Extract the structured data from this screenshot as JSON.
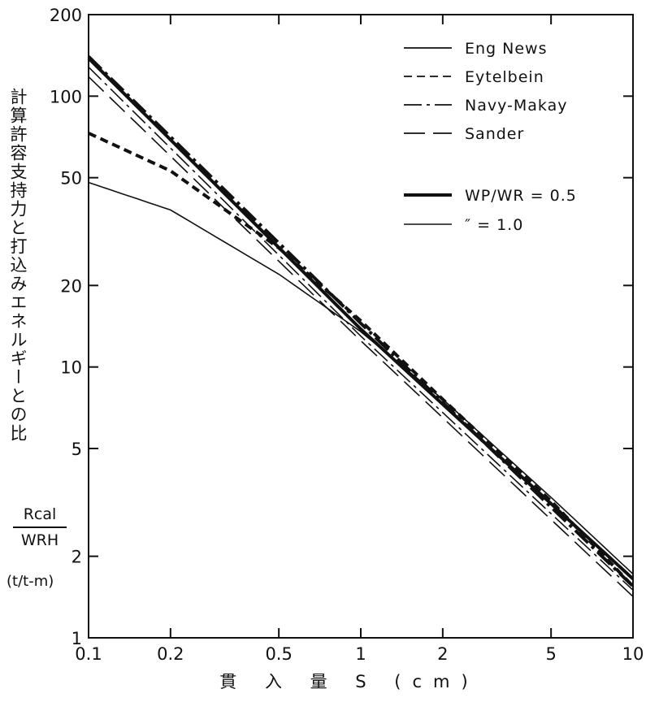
{
  "chart_data": {
    "type": "line",
    "title": "",
    "xlabel": "貫 入 量 S (cm)",
    "ylabel": {
      "text": "計算許容支持力と打込みエネルギーとの比",
      "numerator": "Rcal",
      "denominator": "WRH",
      "unit": "(t/t-m)"
    },
    "xscale": "log",
    "yscale": "log",
    "xlim": [
      0.1,
      10
    ],
    "ylim": [
      1,
      200
    ],
    "xticks": [
      "0.1",
      "0.2",
      "0.5",
      "1",
      "2",
      "5",
      "10"
    ],
    "yticks": [
      "1",
      "2",
      "5",
      "10",
      "20",
      "50",
      "100",
      "200"
    ],
    "grid": false,
    "legend": {
      "placement": "top-right",
      "styles": [
        {
          "label": "Eng News",
          "dash": "solid"
        },
        {
          "label": "Eytelbein",
          "dash": "dashed"
        },
        {
          "label": "Navy-Makay",
          "dash": "dashdot"
        },
        {
          "label": "Sander",
          "dash": "longdash"
        }
      ],
      "weights": [
        {
          "label": "WP/WR = 0.5",
          "width": "thick"
        },
        {
          "label": "″ = 1.0",
          "width": "thin"
        }
      ]
    },
    "series": [
      {
        "formula": "Eng News",
        "ratio": 0.5,
        "dash": "solid",
        "width": "thick",
        "x": [
          0.1,
          1,
          10
        ],
        "y": [
          138,
          13.8,
          1.65
        ]
      },
      {
        "formula": "Eytelbein",
        "ratio": 0.5,
        "dash": "dashed",
        "width": "thick",
        "x": [
          0.1,
          0.2,
          0.5,
          1,
          2,
          5,
          10
        ],
        "y": [
          73,
          53,
          27.5,
          14.8,
          7.6,
          3.2,
          1.55
        ]
      },
      {
        "formula": "Navy-Makay",
        "ratio": 0.5,
        "dash": "dashdot",
        "width": "thick",
        "x": [
          0.1,
          1,
          10
        ],
        "y": [
          140,
          14.5,
          1.55
        ]
      },
      {
        "formula": "Eng News",
        "ratio": 1.0,
        "dash": "solid",
        "width": "thin",
        "x": [
          0.1,
          0.2,
          0.5,
          1,
          2,
          5,
          10
        ],
        "y": [
          48,
          38,
          22,
          13.5,
          7.6,
          3.3,
          1.72
        ]
      },
      {
        "formula": "Navy-Makay",
        "ratio": 1.0,
        "dash": "dashdot",
        "width": "thin",
        "x": [
          0.1,
          1,
          10
        ],
        "y": [
          128,
          13,
          1.5
        ]
      },
      {
        "formula": "Sander",
        "ratio": 1.0,
        "dash": "longdash",
        "width": "thin",
        "x": [
          0.1,
          1,
          10
        ],
        "y": [
          118,
          12.5,
          1.42
        ]
      }
    ],
    "colors": {
      "ink": "#111111",
      "background": "#ffffff"
    }
  }
}
